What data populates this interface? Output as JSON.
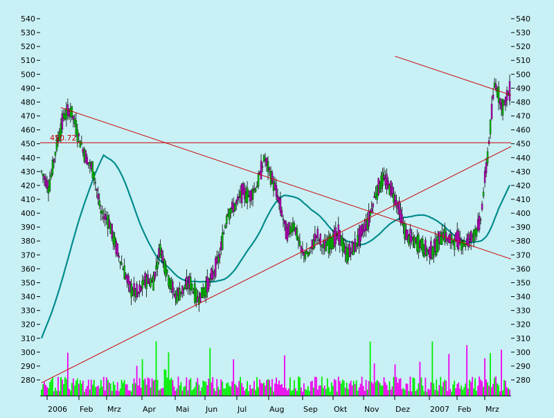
{
  "chart_data": {
    "type": "candlestick",
    "title": "",
    "xlabel": "",
    "ylabel": "",
    "ylim": [
      270,
      545
    ],
    "y_ticks": [
      280,
      290,
      300,
      310,
      320,
      330,
      340,
      350,
      360,
      370,
      380,
      390,
      400,
      410,
      420,
      430,
      440,
      450,
      460,
      470,
      480,
      490,
      500,
      510,
      520,
      530,
      540
    ],
    "x_tick_labels": [
      "2006",
      "Feb",
      "Mrz",
      "Apr",
      "Mai",
      "Jun",
      "Jul",
      "Aug",
      "Sep",
      "Okt",
      "Nov",
      "Dez",
      "2007",
      "Feb",
      "Mrz"
    ],
    "x_tick_month_index": [
      0,
      1,
      2,
      3,
      4,
      5,
      6,
      7,
      8,
      9,
      10,
      11,
      12,
      13,
      14
    ],
    "start_date": "2006-01-02",
    "weeks": 64,
    "closes": [
      430,
      418,
      448,
      470,
      474,
      455,
      440,
      430,
      400,
      395,
      376,
      360,
      345,
      342,
      352,
      350,
      375,
      355,
      340,
      345,
      350,
      338,
      345,
      355,
      370,
      400,
      405,
      415,
      412,
      420,
      440,
      425,
      408,
      385,
      392,
      372,
      370,
      385,
      375,
      380,
      385,
      370,
      375,
      385,
      395,
      415,
      425,
      418,
      405,
      385,
      380,
      378,
      372,
      375,
      385,
      380,
      381,
      378,
      384,
      392,
      440,
      495,
      476,
      488
    ],
    "overlay_lines": [
      {
        "name": "horizontal",
        "value": 450.72,
        "label": "450.72",
        "color": "#cc0000"
      },
      {
        "name": "downtrend-1",
        "from": {
          "week": 4,
          "price": 476
        },
        "to": {
          "week": 97,
          "price": 367
        },
        "color": "#cc0000"
      },
      {
        "name": "uptrend",
        "from": {
          "week": 0,
          "price": 278
        },
        "to": {
          "week": 97,
          "price": 448
        },
        "color": "#cc0000"
      },
      {
        "name": "downtrend-2",
        "from": {
          "week": 73,
          "price": 513
        },
        "to": {
          "week": 97,
          "price": 485
        },
        "color": "#cc0000"
      },
      {
        "name": "moving-average",
        "color": "#008b8b"
      }
    ],
    "volume_colors": {
      "up": "#00ee00",
      "down": "#ee00ee"
    },
    "grid": false,
    "legend": "none"
  }
}
